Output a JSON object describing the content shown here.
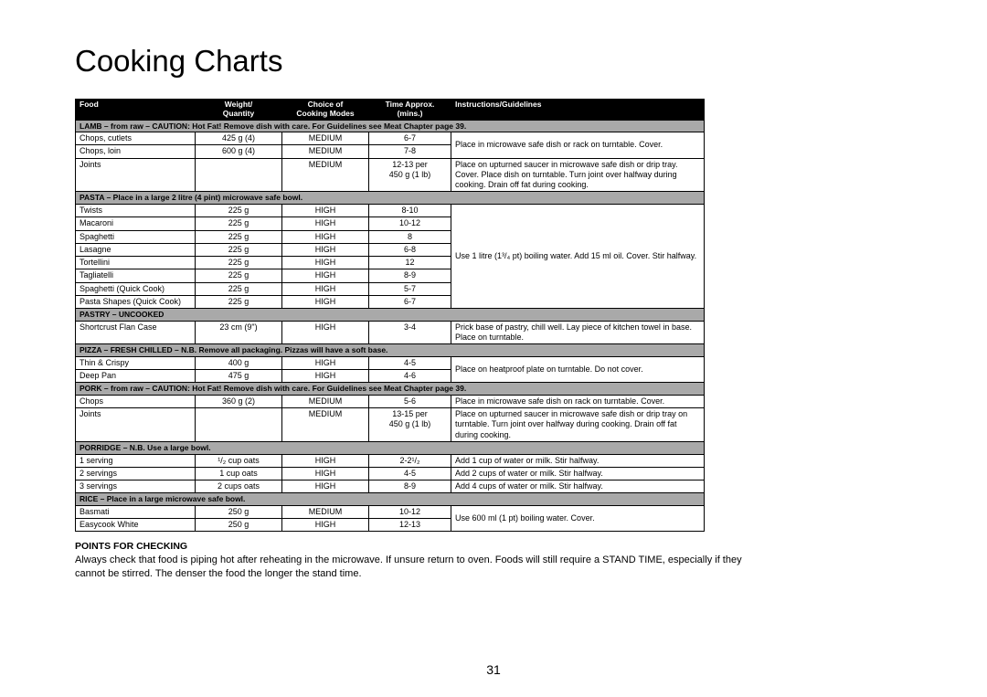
{
  "title": "Cooking Charts",
  "page_number": "31",
  "headers": {
    "food": "Food",
    "weight": "Weight/\nQuantity",
    "mode": "Choice of\nCooking Modes",
    "time": "Time Approx.\n(mins.)",
    "instr": "Instructions/Guidelines"
  },
  "sections": [
    {
      "heading": "LAMB – from raw – CAUTION: Hot Fat! Remove dish with care. For Guidelines see Meat Chapter page 39.",
      "rows": [
        {
          "food": "Chops, cutlets",
          "wt": "425 g (4)",
          "mode": "MEDIUM",
          "time": "6-7",
          "instr": "Place in microwave safe dish or rack on turntable. Cover.",
          "instr_rowspan": 1
        },
        {
          "food": "Chops, loin",
          "wt": "600 g (4)",
          "mode": "MEDIUM",
          "time": "7-8",
          "instr_merge": "up"
        },
        {
          "food": "Joints",
          "wt": "",
          "mode": "MEDIUM",
          "time": "12-13 per\n450 g (1 lb)",
          "instr": "Place on upturned saucer in microwave safe dish or drip tray. Cover. Place dish on turntable. Turn joint over halfway during cooking. Drain off fat during cooking."
        }
      ],
      "instr_group": [
        {
          "start": 0,
          "span": 2,
          "text": "Place in microwave safe dish or rack on turntable. Cover."
        },
        {
          "start": 2,
          "span": 1,
          "text": "Place on upturned saucer in microwave safe dish or drip tray. Cover. Place dish on turntable. Turn joint over halfway during cooking. Drain off fat during cooking."
        }
      ]
    },
    {
      "heading": "PASTA – Place in a large 2 litre (4 pint) microwave safe bowl.",
      "rows": [
        {
          "food": "Twists",
          "wt": "225 g",
          "mode": "HIGH",
          "time": "8-10"
        },
        {
          "food": "Macaroni",
          "wt": "225 g",
          "mode": "HIGH",
          "time": "10-12"
        },
        {
          "food": "Spaghetti",
          "wt": "225 g",
          "mode": "HIGH",
          "time": "8"
        },
        {
          "food": "Lasagne",
          "wt": "225 g",
          "mode": "HIGH",
          "time": "6-8"
        },
        {
          "food": "Tortellini",
          "wt": "225 g",
          "mode": "HIGH",
          "time": "12"
        },
        {
          "food": "Tagliatelli",
          "wt": "225 g",
          "mode": "HIGH",
          "time": "8-9"
        },
        {
          "food": "Spaghetti (Quick Cook)",
          "wt": "225 g",
          "mode": "HIGH",
          "time": "5-7"
        },
        {
          "food": "Pasta Shapes (Quick Cook)",
          "wt": "225 g",
          "mode": "HIGH",
          "time": "6-7"
        }
      ],
      "instr_group": [
        {
          "start": 0,
          "span": 8,
          "text": "Use 1 litre (1³/₄ pt) boiling water. Add 15 ml oil. Cover. Stir halfway."
        }
      ]
    },
    {
      "heading": "PASTRY – UNCOOKED",
      "rows": [
        {
          "food": "Shortcrust Flan Case",
          "wt": "23 cm (9\")",
          "mode": "HIGH",
          "time": "3-4"
        }
      ],
      "instr_group": [
        {
          "start": 0,
          "span": 1,
          "text": "Prick base of pastry, chill well. Lay piece of kitchen towel in base. Place on turntable."
        }
      ]
    },
    {
      "heading": "PIZZA – FRESH CHILLED – N.B. Remove all packaging. Pizzas will have a soft base.",
      "rows": [
        {
          "food": "Thin & Crispy",
          "wt": "400 g",
          "mode": "HIGH",
          "time": "4-5"
        },
        {
          "food": "Deep Pan",
          "wt": "475 g",
          "mode": "HIGH",
          "time": "4-6"
        }
      ],
      "instr_group": [
        {
          "start": 0,
          "span": 2,
          "text": "Place on heatproof plate on turntable. Do not cover."
        }
      ]
    },
    {
      "heading": "PORK – from raw – CAUTION: Hot Fat! Remove dish with care. For Guidelines see Meat Chapter page 39.",
      "rows": [
        {
          "food": "Chops",
          "wt": "360 g (2)",
          "mode": "MEDIUM",
          "time": "5-6"
        },
        {
          "food": "Joints",
          "wt": "",
          "mode": "MEDIUM",
          "time": "13-15 per\n450 g (1 lb)"
        }
      ],
      "instr_group": [
        {
          "start": 0,
          "span": 1,
          "text": "Place in microwave safe dish on rack on turntable. Cover."
        },
        {
          "start": 1,
          "span": 1,
          "text": "Place on upturned saucer in microwave safe dish or drip tray on turntable. Turn joint over halfway during cooking. Drain off fat during cooking."
        }
      ]
    },
    {
      "heading": "PORRIDGE – N.B. Use a large bowl.",
      "rows": [
        {
          "food": "1 serving",
          "wt": "¹/₂ cup oats",
          "mode": "HIGH",
          "time": "2-2¹/₂"
        },
        {
          "food": "2 servings",
          "wt": "1 cup oats",
          "mode": "HIGH",
          "time": "4-5"
        },
        {
          "food": "3 servings",
          "wt": "2 cups oats",
          "mode": "HIGH",
          "time": "8-9"
        }
      ],
      "instr_group": [
        {
          "start": 0,
          "span": 1,
          "text": "Add 1 cup of water or milk. Stir halfway."
        },
        {
          "start": 1,
          "span": 1,
          "text": "Add 2 cups of water or milk. Stir halfway."
        },
        {
          "start": 2,
          "span": 1,
          "text": "Add 4 cups of water or milk. Stir halfway."
        }
      ]
    },
    {
      "heading": "RICE – Place in a large microwave safe bowl.",
      "rows": [
        {
          "food": "Basmati",
          "wt": "250 g",
          "mode": "MEDIUM",
          "time": "10-12"
        },
        {
          "food": "Easycook White",
          "wt": "250 g",
          "mode": "HIGH",
          "time": "12-13"
        }
      ],
      "instr_group": [
        {
          "start": 0,
          "span": 2,
          "text": "Use 600 ml (1 pt) boiling water. Cover."
        }
      ]
    }
  ],
  "points": {
    "heading": "POINTS FOR CHECKING",
    "body": "Always check that food is piping hot after reheating in the microwave. If unsure return to oven. Foods will still require a STAND TIME, especially if they cannot be stirred. The denser the food the longer the stand time."
  },
  "colors": {
    "header_bg": "#000000",
    "header_fg": "#ffffff",
    "section_bg": "#a9a9a9",
    "border": "#000000",
    "text": "#000000"
  }
}
